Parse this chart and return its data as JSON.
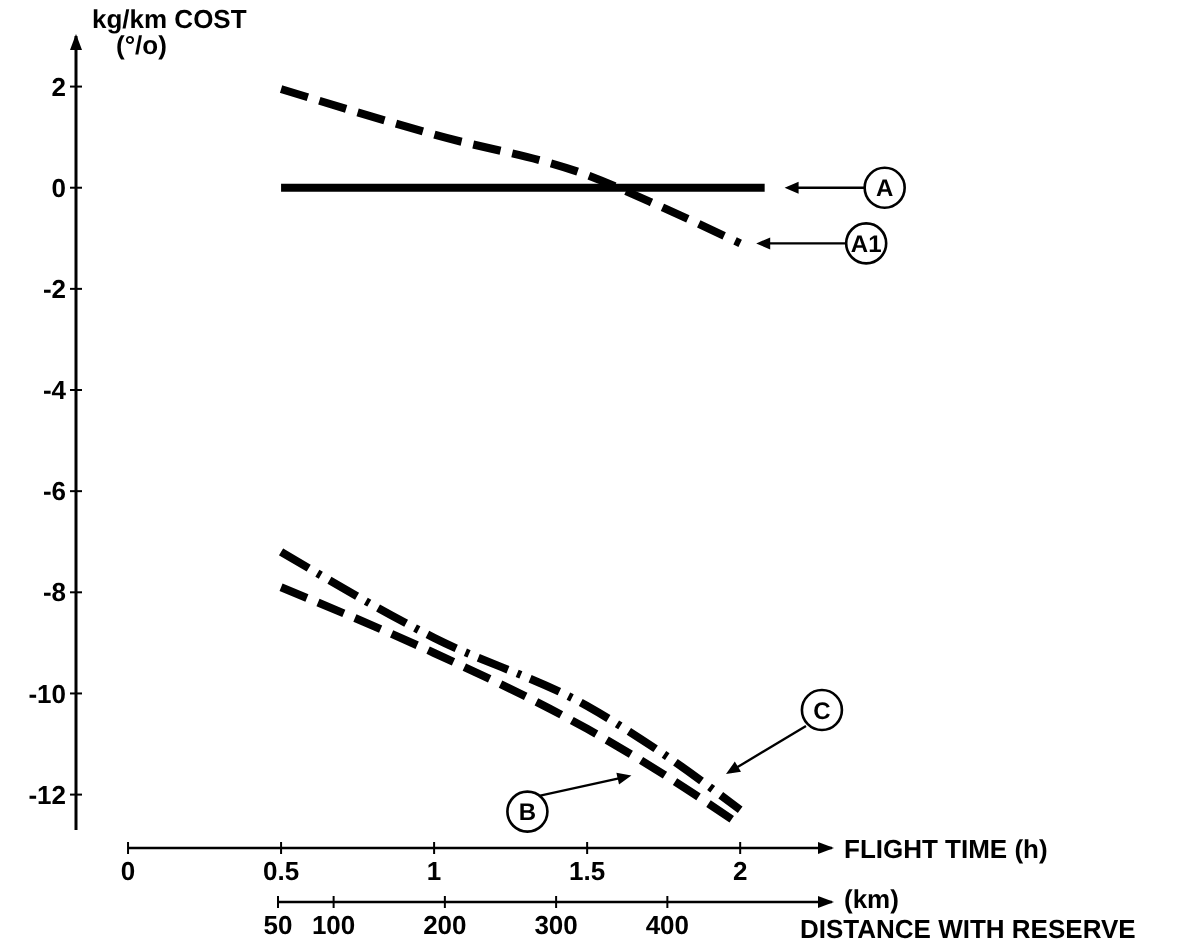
{
  "chart_data": {
    "type": "line",
    "ylabel": "kg/km COST\n(°/o)",
    "xlabel": "FLIGHT TIME (h)",
    "x2label": "(km)\nDISTANCE WITH RESERVE",
    "xlim": [
      -0.17,
      2.3
    ],
    "xticks": [
      0,
      0.5,
      1,
      1.5,
      2
    ],
    "x2lim": [
      50,
      548
    ],
    "x2ticks": [
      50,
      100,
      200,
      300,
      400
    ],
    "ylim": [
      -12.7,
      3
    ],
    "yticks": [
      -12,
      -10,
      -8,
      -6,
      -4,
      -2,
      0,
      2
    ],
    "grid": false,
    "legend": "right",
    "marker": "none",
    "series": [
      {
        "name": "A",
        "color": "#000000",
        "line_style": "solid",
        "x": [
          0.5,
          1,
          1.5,
          2.08
        ],
        "values": [
          0,
          0,
          0,
          0
        ]
      },
      {
        "name": "A1",
        "color": "#000000",
        "line_style": "dashed",
        "x": [
          0.5,
          1,
          1.5,
          1.75,
          2
        ],
        "values": [
          1.95,
          1.05,
          0.25,
          -0.4,
          -1.1
        ]
      },
      {
        "name": "B",
        "color": "#000000",
        "line_style": "dashed",
        "x": [
          0.5,
          1,
          1.5,
          1.75,
          2
        ],
        "values": [
          -7.9,
          -9.2,
          -10.7,
          -11.6,
          -12.6
        ]
      },
      {
        "name": "C",
        "color": "#000000",
        "line_style": "dashdot",
        "x": [
          0.5,
          1,
          1.5,
          1.75,
          2
        ],
        "values": [
          -7.2,
          -8.9,
          -10.25,
          -11.2,
          -12.3
        ]
      }
    ]
  }
}
